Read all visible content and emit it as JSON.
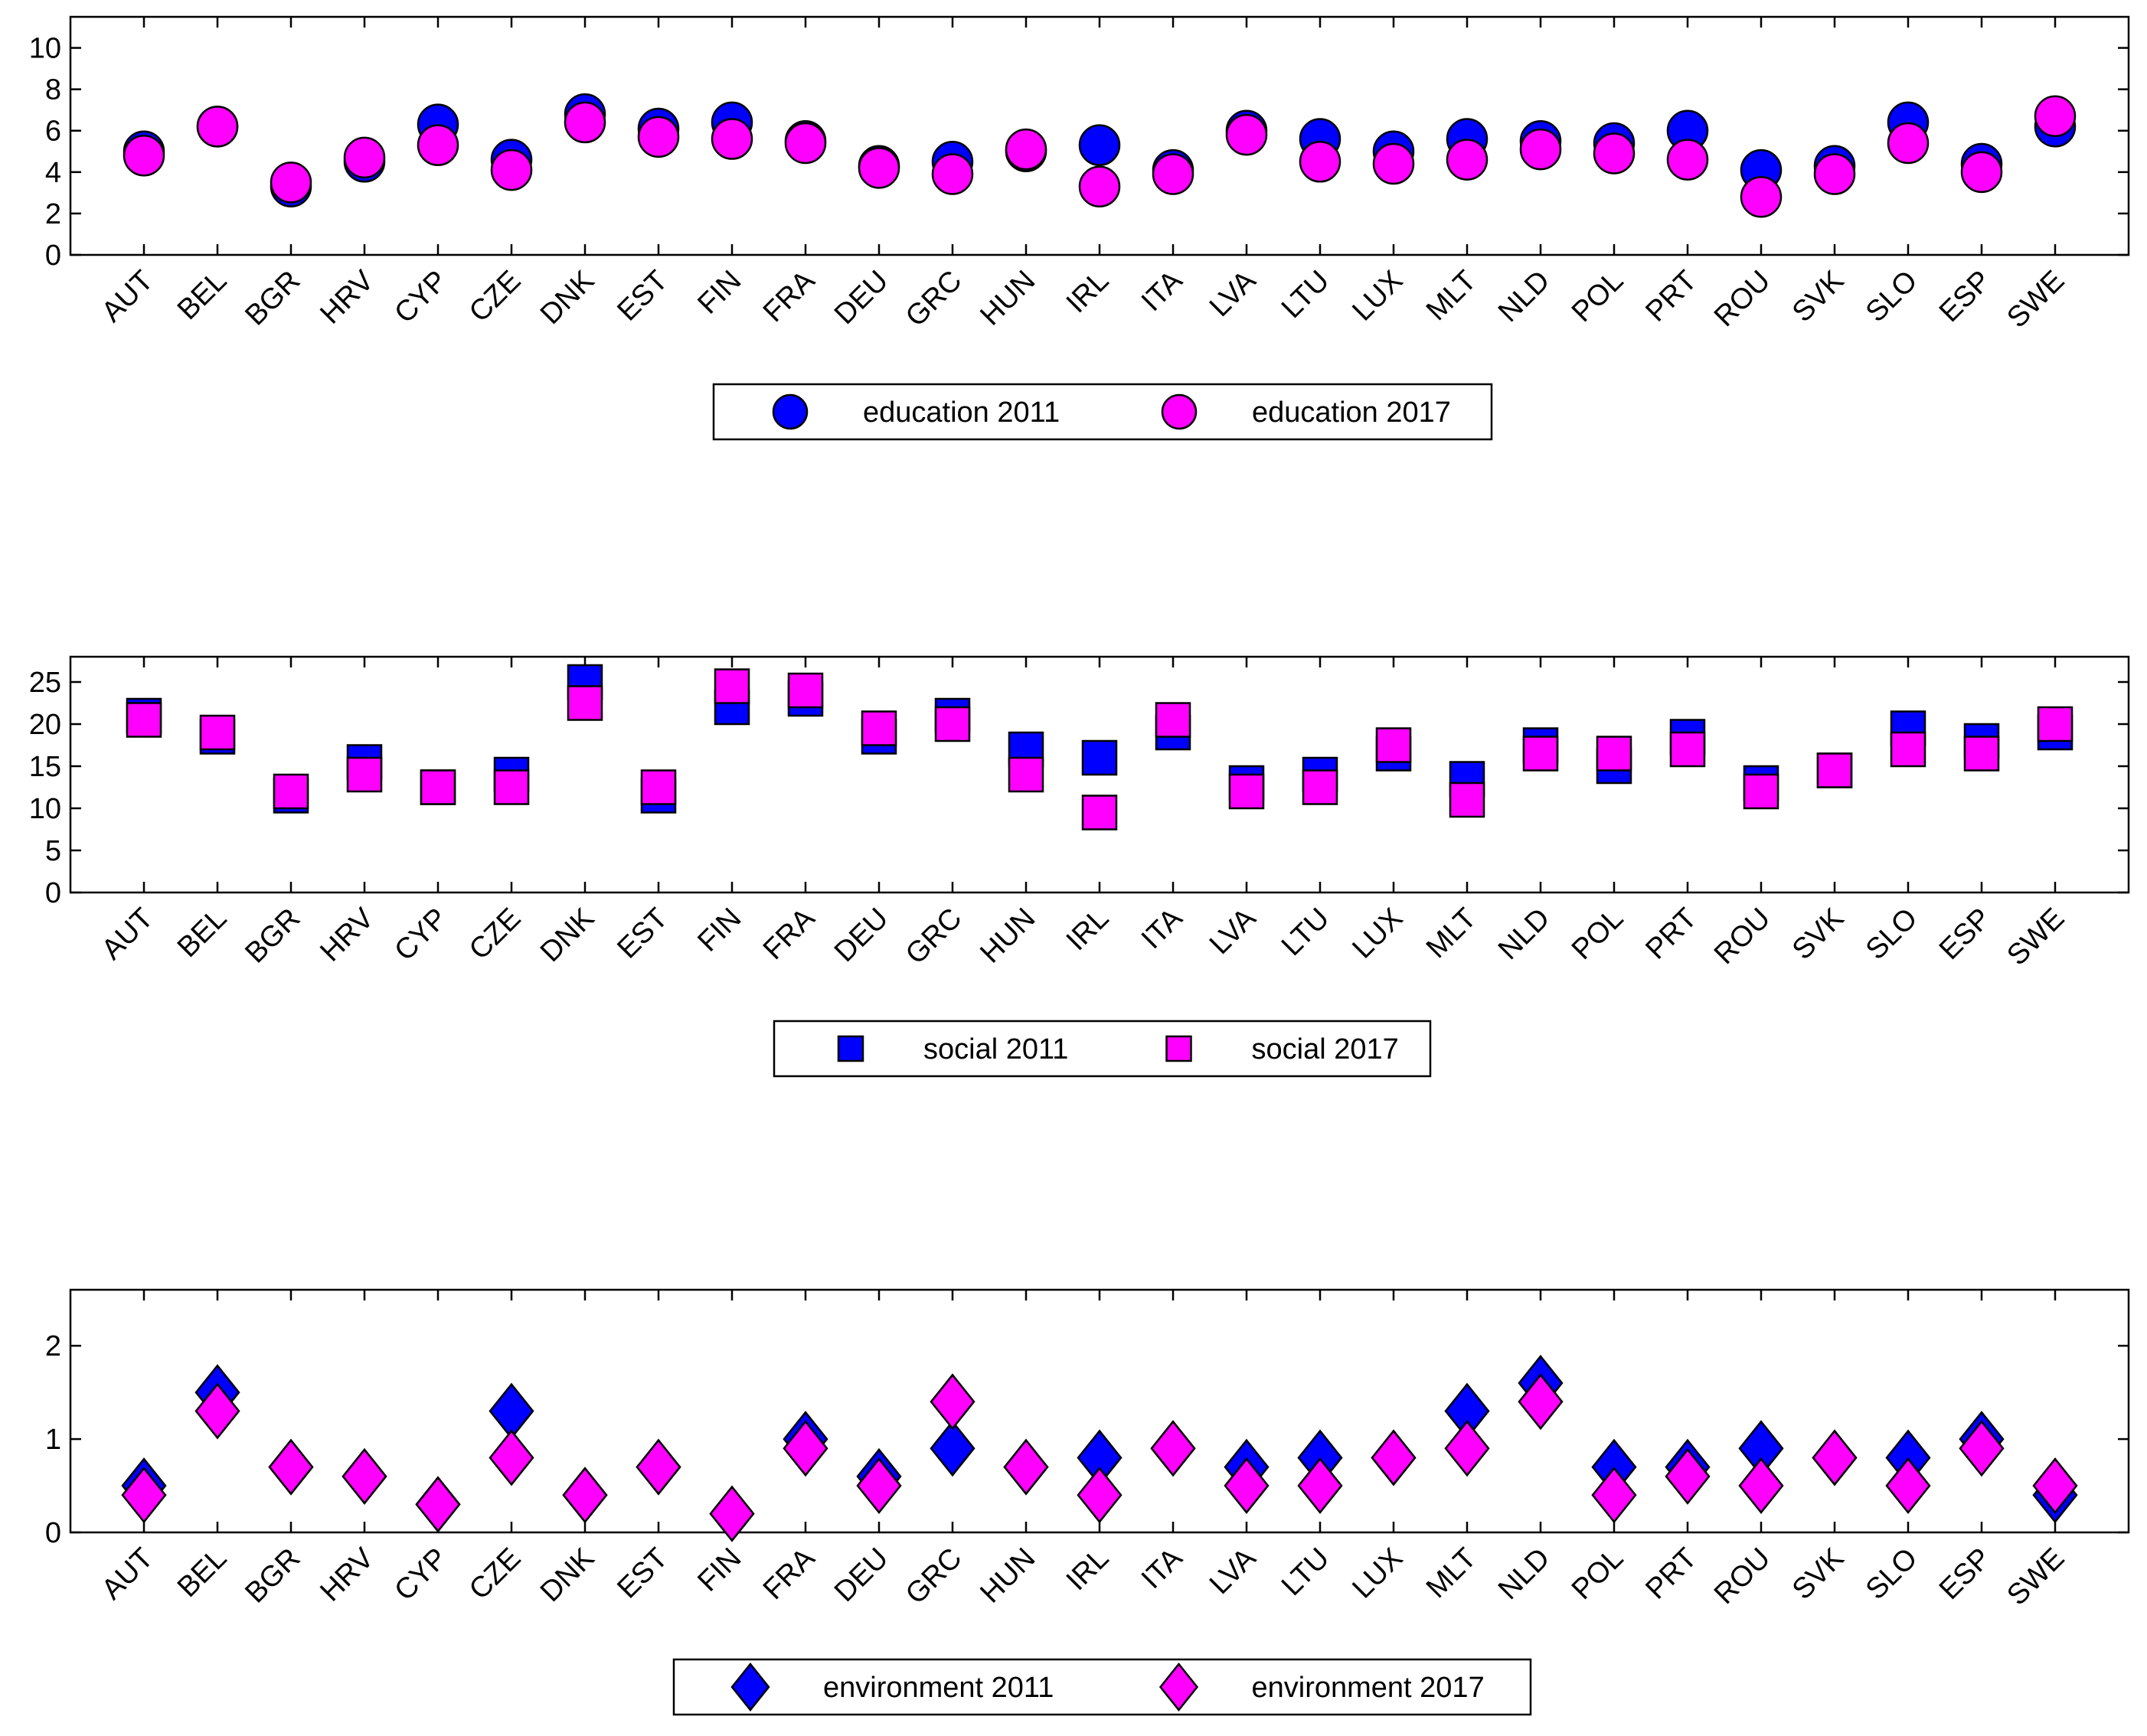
{
  "colors": {
    "series_2011": "#0000ff",
    "series_2017": "#ff00ff",
    "axis": "#000000",
    "background": "#ffffff"
  },
  "chart_data": [
    {
      "type": "scatter",
      "marker": "circle",
      "categories": [
        "AUT",
        "BEL",
        "BGR",
        "HRV",
        "CYP",
        "CZE",
        "DNK",
        "EST",
        "FIN",
        "FRA",
        "DEU",
        "GRC",
        "HUN",
        "IRL",
        "ITA",
        "LVA",
        "LTU",
        "LUX",
        "MLT",
        "NLD",
        "POL",
        "PRT",
        "ROU",
        "SVK",
        "SLO",
        "ESP",
        "SWE"
      ],
      "series": [
        {
          "name": "education 2011",
          "color": "#0000ff",
          "values": [
            5.0,
            6.2,
            3.3,
            4.5,
            6.3,
            4.6,
            6.8,
            6.1,
            6.4,
            5.5,
            4.3,
            4.5,
            5.0,
            5.3,
            4.1,
            6.0,
            5.6,
            5.0,
            5.6,
            5.5,
            5.4,
            6.0,
            4.1,
            4.3,
            6.4,
            4.4,
            6.2
          ]
        },
        {
          "name": "education 2017",
          "color": "#ff00ff",
          "values": [
            4.8,
            6.2,
            3.5,
            4.7,
            5.3,
            4.1,
            6.4,
            5.7,
            5.6,
            5.4,
            4.2,
            3.9,
            5.1,
            3.3,
            3.9,
            5.8,
            4.5,
            4.4,
            4.6,
            5.1,
            4.9,
            4.6,
            2.8,
            3.9,
            5.4,
            4.0,
            6.7
          ]
        }
      ],
      "ylim": [
        0,
        11.5
      ],
      "yticks": [
        0,
        2,
        4,
        6,
        8,
        10
      ],
      "title": "",
      "xlabel": "",
      "ylabel": "",
      "legend": "bottom-center",
      "grid": false
    },
    {
      "type": "scatter",
      "marker": "square",
      "categories": [
        "AUT",
        "BEL",
        "BGR",
        "HRV",
        "CYP",
        "CZE",
        "DNK",
        "EST",
        "FIN",
        "FRA",
        "DEU",
        "GRC",
        "HUN",
        "IRL",
        "ITA",
        "LVA",
        "LTU",
        "LUX",
        "MLT",
        "NLD",
        "POL",
        "PRT",
        "ROU",
        "SVK",
        "SLO",
        "ESP",
        "SWE"
      ],
      "series": [
        {
          "name": "social 2011",
          "color": "#0000ff",
          "values": [
            21.0,
            18.5,
            11.5,
            15.5,
            12.5,
            14.0,
            25.0,
            11.5,
            22.0,
            23.0,
            18.5,
            21.0,
            17.0,
            16.0,
            19.0,
            13.0,
            14.0,
            16.5,
            13.5,
            17.5,
            15.0,
            18.5,
            13.0,
            14.5,
            19.5,
            18.0,
            19.0
          ]
        },
        {
          "name": "social 2017",
          "color": "#ff00ff",
          "values": [
            20.5,
            19.0,
            12.0,
            14.0,
            12.5,
            12.5,
            22.5,
            12.5,
            24.5,
            24.0,
            19.5,
            20.0,
            14.0,
            9.5,
            20.5,
            12.0,
            12.5,
            17.5,
            11.0,
            16.5,
            16.5,
            17.0,
            12.0,
            14.5,
            17.0,
            16.5,
            20.0
          ]
        }
      ],
      "ylim": [
        0,
        28
      ],
      "yticks": [
        0,
        5,
        10,
        15,
        20,
        25
      ],
      "title": "",
      "xlabel": "",
      "ylabel": "",
      "legend": "bottom-center",
      "grid": false
    },
    {
      "type": "scatter",
      "marker": "diamond",
      "categories": [
        "AUT",
        "BEL",
        "BGR",
        "HRV",
        "CYP",
        "CZE",
        "DNK",
        "EST",
        "FIN",
        "FRA",
        "DEU",
        "GRC",
        "HUN",
        "IRL",
        "ITA",
        "LVA",
        "LTU",
        "LUX",
        "MLT",
        "NLD",
        "POL",
        "PRT",
        "ROU",
        "SVK",
        "SLO",
        "ESP",
        "SWE"
      ],
      "series": [
        {
          "name": "environment 2011",
          "color": "#0000ff",
          "values": [
            0.5,
            1.5,
            0.7,
            0.6,
            0.3,
            1.3,
            0.4,
            0.7,
            0.2,
            1.0,
            0.6,
            0.9,
            0.7,
            0.8,
            0.9,
            0.7,
            0.8,
            0.8,
            1.3,
            1.6,
            0.7,
            0.7,
            0.9,
            0.8,
            0.8,
            1.0,
            0.4
          ]
        },
        {
          "name": "environment 2017",
          "color": "#ff00ff",
          "values": [
            0.4,
            1.3,
            0.7,
            0.6,
            0.3,
            0.8,
            0.4,
            0.7,
            0.2,
            0.9,
            0.5,
            1.4,
            0.7,
            0.4,
            0.9,
            0.5,
            0.5,
            0.8,
            0.9,
            1.4,
            0.4,
            0.6,
            0.5,
            0.8,
            0.5,
            0.9,
            0.5
          ]
        }
      ],
      "ylim": [
        0,
        2.6
      ],
      "yticks": [
        0,
        1,
        2
      ],
      "title": "",
      "xlabel": "",
      "ylabel": "",
      "legend": "bottom-center",
      "grid": false
    }
  ]
}
